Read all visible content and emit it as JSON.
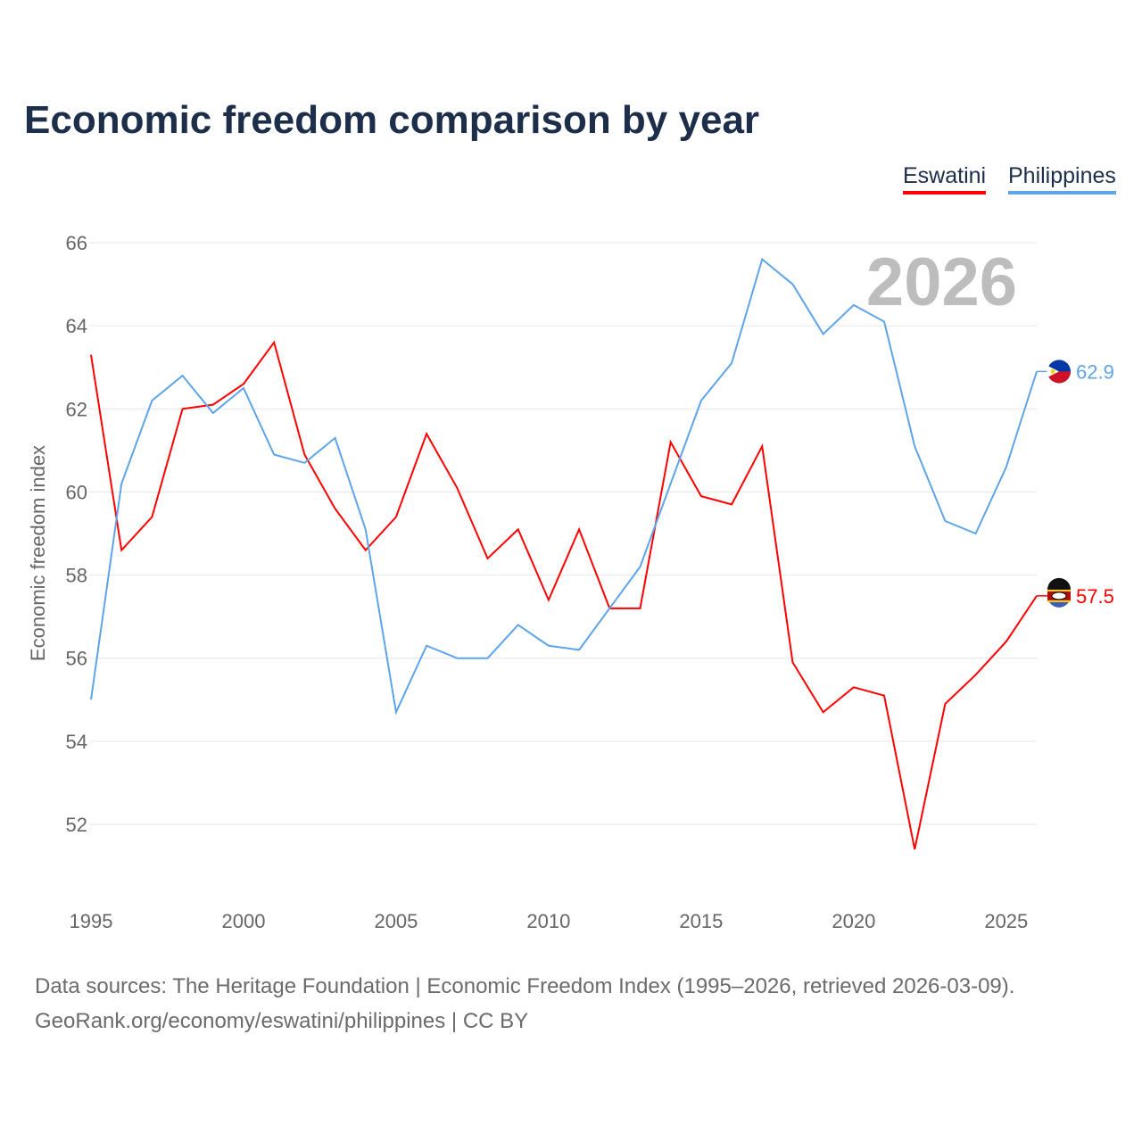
{
  "title": "Economic freedom comparison by year",
  "legend": [
    {
      "label": "Eswatini",
      "color": "#ff0000"
    },
    {
      "label": "Philippines",
      "color": "#5ea4e8"
    }
  ],
  "year_watermark": "2026",
  "end_labels": {
    "Eswatini": "57.5",
    "Philippines": "62.9"
  },
  "source": {
    "line1": "Data sources: The Heritage Foundation | Economic Freedom Index (1995–2026, retrieved 2026-03-09).",
    "line2": "GeoRank.org/economy/eswatini/philippines | CC BY"
  },
  "chart_data": {
    "type": "line",
    "title": "Economic freedom comparison by year",
    "xlabel": "",
    "ylabel": "Economic freedom index",
    "xlim": [
      1995,
      2026
    ],
    "ylim": [
      50.5,
      66
    ],
    "yticks": [
      52,
      54,
      56,
      58,
      60,
      62,
      64,
      66
    ],
    "xticks": [
      1995,
      2000,
      2005,
      2010,
      2015,
      2020,
      2025
    ],
    "grid": true,
    "legend_position": "top-right",
    "x": [
      1995,
      1996,
      1997,
      1998,
      1999,
      2000,
      2001,
      2002,
      2003,
      2004,
      2005,
      2006,
      2007,
      2008,
      2009,
      2010,
      2011,
      2012,
      2013,
      2014,
      2015,
      2016,
      2017,
      2018,
      2019,
      2020,
      2021,
      2022,
      2023,
      2024,
      2025,
      2026
    ],
    "series": [
      {
        "name": "Eswatini",
        "color": "#ff0000",
        "values": [
          63.3,
          58.6,
          59.4,
          62.0,
          62.1,
          62.6,
          63.6,
          60.9,
          59.6,
          58.6,
          59.4,
          61.4,
          60.1,
          58.4,
          59.1,
          57.4,
          59.1,
          57.2,
          57.2,
          61.2,
          59.9,
          59.7,
          61.1,
          55.9,
          54.7,
          55.3,
          55.1,
          51.4,
          54.9,
          55.6,
          56.4,
          57.5
        ]
      },
      {
        "name": "Philippines",
        "color": "#5ea4e8",
        "values": [
          55.0,
          60.2,
          62.2,
          62.8,
          61.9,
          62.5,
          60.9,
          60.7,
          61.3,
          59.1,
          54.7,
          56.3,
          56.0,
          56.0,
          56.8,
          56.3,
          56.2,
          57.2,
          58.2,
          60.2,
          62.2,
          63.1,
          65.6,
          65.0,
          63.8,
          64.5,
          64.1,
          61.1,
          59.3,
          59.0,
          60.6,
          62.9
        ]
      }
    ]
  }
}
